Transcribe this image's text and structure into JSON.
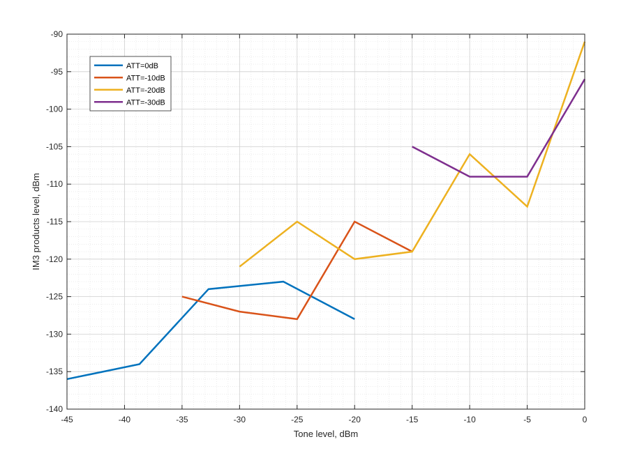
{
  "chart_data": {
    "type": "line",
    "title": "",
    "xlabel": "Tone level, dBm",
    "ylabel": "IM3 products level, dBm",
    "xlim": [
      -45,
      0
    ],
    "ylim": [
      -140,
      -90
    ],
    "xticks": [
      -45,
      -40,
      -35,
      -30,
      -25,
      -20,
      -15,
      -10,
      -5,
      0
    ],
    "yticks": [
      -140,
      -135,
      -130,
      -125,
      -120,
      -115,
      -110,
      -105,
      -100,
      -95,
      -90
    ],
    "grid": true,
    "minor_grid": true,
    "legend_position": "top-left",
    "series": [
      {
        "name": "ATT=0dB",
        "color": "#0072BD",
        "x": [
          -45,
          -38.7,
          -32.7,
          -26.2,
          -20
        ],
        "y": [
          -136,
          -134,
          -124,
          -123,
          -128
        ]
      },
      {
        "name": "ATT=-10dB",
        "color": "#D95319",
        "x": [
          -35,
          -30,
          -25,
          -20,
          -15
        ],
        "y": [
          -125,
          -127,
          -128,
          -115,
          -119
        ]
      },
      {
        "name": "ATT=-20dB",
        "color": "#EDB120",
        "x": [
          -30,
          -25,
          -20,
          -15,
          -10,
          -5,
          0
        ],
        "y": [
          -121,
          -115,
          -120,
          -119,
          -106,
          -113,
          -91
        ]
      },
      {
        "name": "ATT=-30dB",
        "color": "#7E2F8E",
        "x": [
          -15,
          -10,
          -5,
          0
        ],
        "y": [
          -105,
          -109,
          -109,
          -96
        ]
      }
    ]
  }
}
